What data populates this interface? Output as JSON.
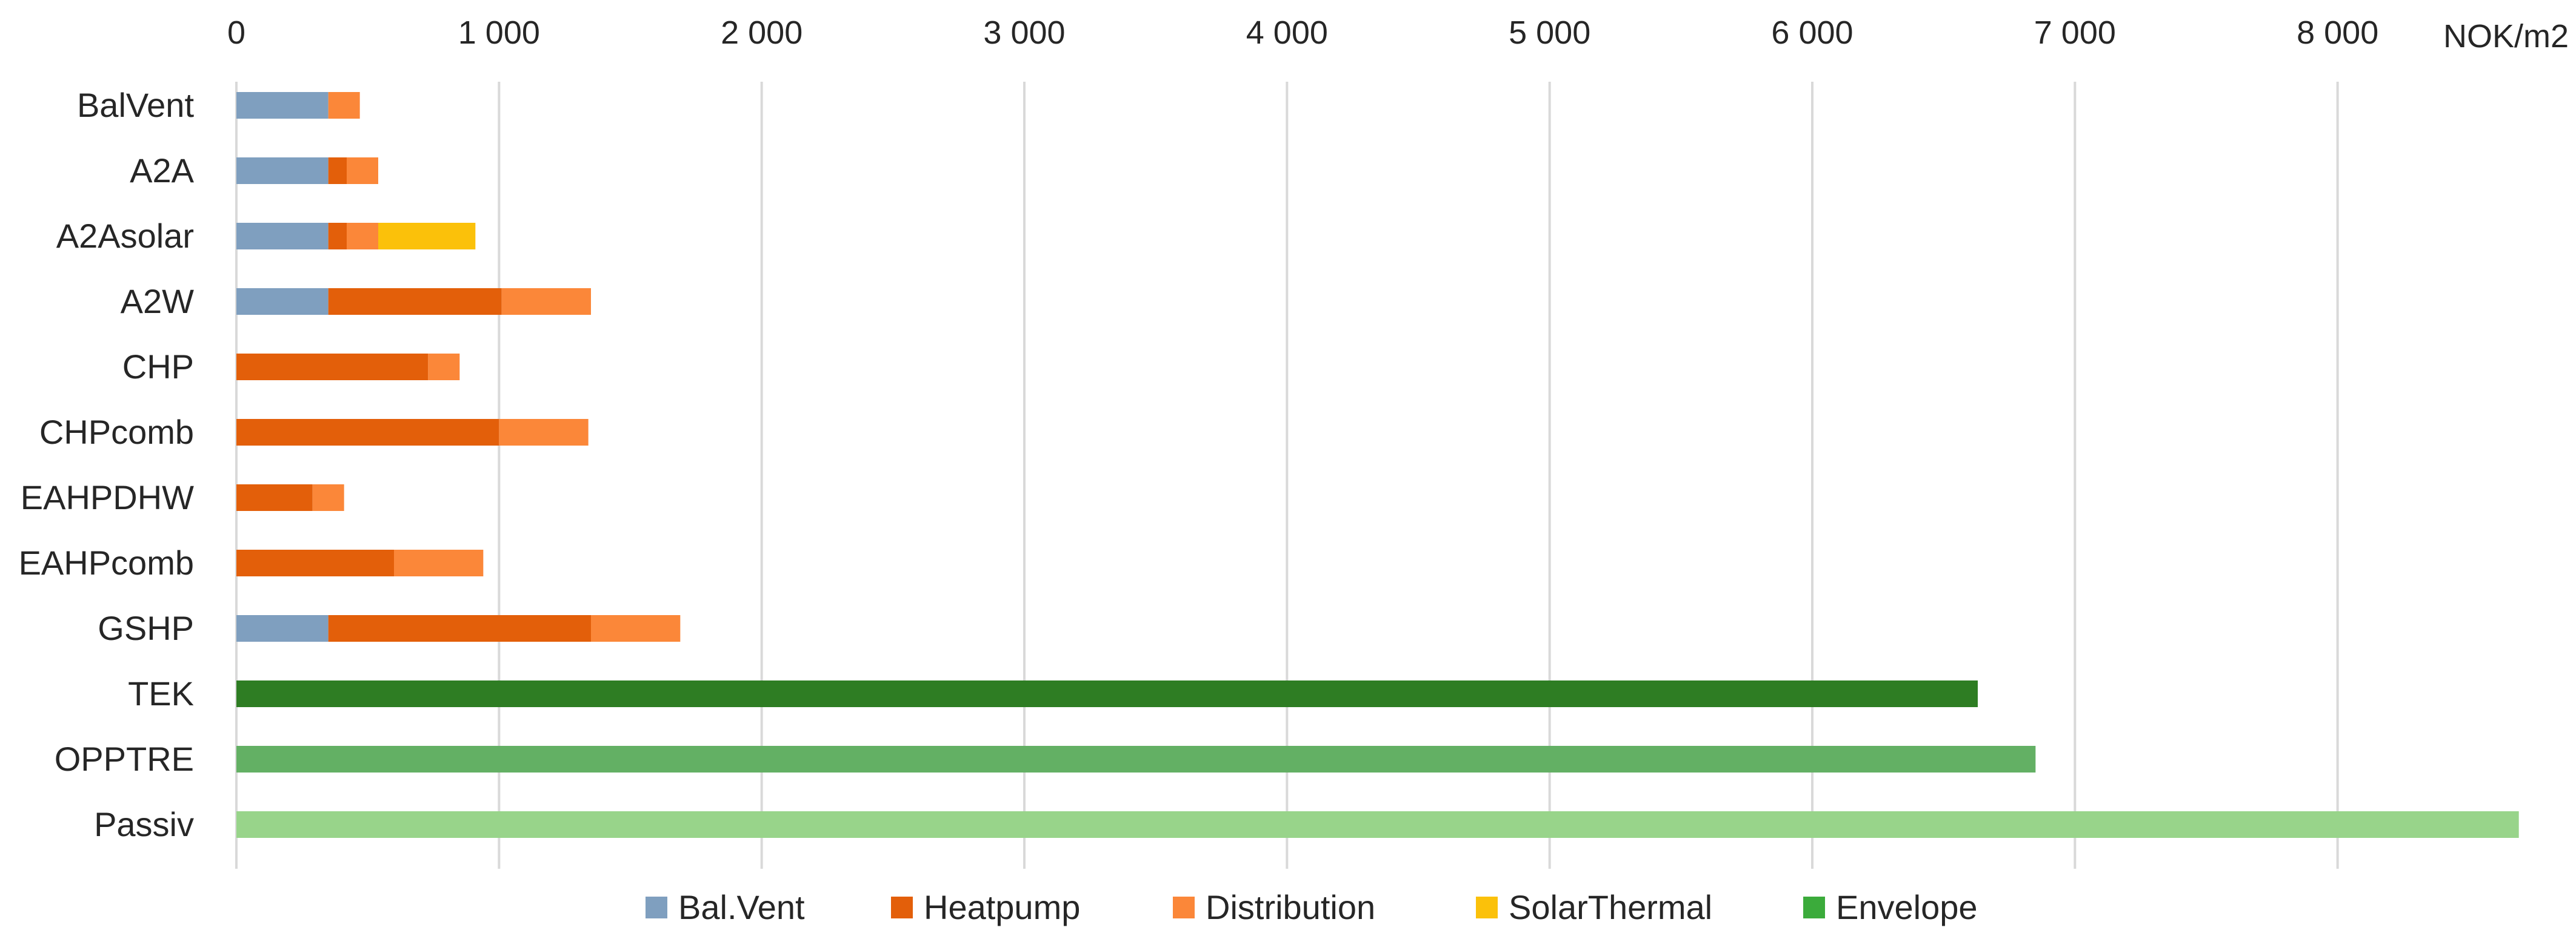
{
  "chart_data": {
    "type": "bar",
    "orientation": "horizontal",
    "stacked": true,
    "title": "",
    "xlabel": "",
    "ylabel": "",
    "unit_label": "NOK/m2",
    "xlim": [
      0,
      8700
    ],
    "x_ticks": [
      0,
      1000,
      2000,
      3000,
      4000,
      5000,
      6000,
      7000,
      8000
    ],
    "x_tick_labels": [
      "0",
      "1 000",
      "2 000",
      "3 000",
      "4 000",
      "5 000",
      "6 000",
      "7 000",
      "8 000"
    ],
    "x_axis_position": "top",
    "grid": true,
    "legend_position": "bottom",
    "categories": [
      "BalVent",
      "A2A",
      "A2Asolar",
      "A2W",
      "CHP",
      "CHPcomb",
      "EAHPDHW",
      "EAHPcomb",
      "GSHP",
      "TEK",
      "OPPTRE",
      "Passiv"
    ],
    "series": [
      {
        "name": "Bal.Vent",
        "color": "#7f9fbf",
        "values": [
          350,
          350,
          350,
          350,
          0,
          0,
          0,
          0,
          350,
          0,
          0,
          0
        ]
      },
      {
        "name": "Heatpump",
        "color": "#e35f0a",
        "values": [
          0,
          70,
          70,
          660,
          730,
          1000,
          290,
          600,
          1000,
          0,
          0,
          0
        ]
      },
      {
        "name": "Distribution",
        "color": "#fb8739",
        "values": [
          120,
          120,
          120,
          340,
          120,
          340,
          120,
          340,
          340,
          0,
          0,
          0
        ]
      },
      {
        "name": "SolarThermal",
        "color": "#fbc10a",
        "values": [
          0,
          0,
          370,
          0,
          0,
          0,
          0,
          0,
          0,
          0,
          0,
          0
        ]
      },
      {
        "name": "Envelope",
        "color": "#3bab3b",
        "values": [
          0,
          0,
          0,
          0,
          0,
          0,
          0,
          0,
          0,
          6630,
          6850,
          8690
        ]
      }
    ],
    "bar_color_overrides": {
      "TEK": "#2e7d23",
      "OPPTRE": "#63b064",
      "Passiv": "#98d48a"
    }
  }
}
